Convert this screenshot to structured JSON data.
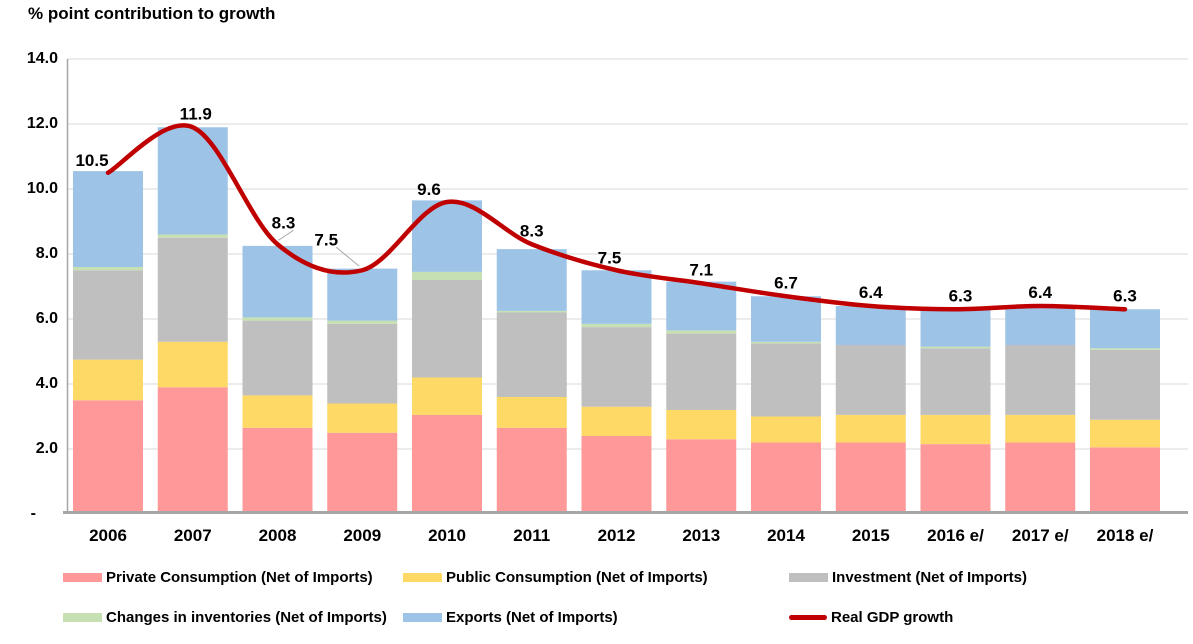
{
  "chart": {
    "title": "% point contribution to growth"
  },
  "chart_data": {
    "type": "bar",
    "subtype": "stacked-column-with-line",
    "title": "% point contribution to growth",
    "categories": [
      "2006",
      "2007",
      "2008",
      "2009",
      "2010",
      "2011",
      "2012",
      "2013",
      "2014",
      "2015",
      "2016 e/",
      "2017 e/",
      "2018 e/"
    ],
    "ylim": [
      0,
      14
    ],
    "ytick_interval": 2,
    "grid": true,
    "legend_position": "bottom",
    "yticks": [
      {
        "label": "14.0",
        "value": 14
      },
      {
        "label": "12.0",
        "value": 12
      },
      {
        "label": "10.0",
        "value": 10
      },
      {
        "label": "8.0",
        "value": 8
      },
      {
        "label": "6.0",
        "value": 6
      },
      {
        "label": "4.0",
        "value": 4
      },
      {
        "label": "2.0",
        "value": 2
      },
      {
        "label": "-",
        "value": 0
      }
    ],
    "series": [
      {
        "id": "private",
        "name": "Private Consumption (Net of Imports)",
        "color": "#FF9999",
        "values": [
          3.5,
          3.9,
          2.65,
          2.5,
          3.05,
          2.65,
          2.4,
          2.3,
          2.2,
          2.2,
          2.15,
          2.2,
          2.05
        ]
      },
      {
        "id": "public",
        "name": "Public Consumption (Net of Imports)",
        "color": "#FFD966",
        "values": [
          1.25,
          1.4,
          1.0,
          0.9,
          1.15,
          0.95,
          0.9,
          0.9,
          0.8,
          0.85,
          0.9,
          0.85,
          0.85
        ]
      },
      {
        "id": "investment",
        "name": "Investment (Net of Imports)",
        "color": "#BFBFBF",
        "values": [
          2.75,
          3.2,
          2.3,
          2.45,
          3.0,
          2.6,
          2.45,
          2.35,
          2.25,
          2.15,
          2.05,
          2.15,
          2.15
        ]
      },
      {
        "id": "inventories",
        "name": "Changes in inventories (Net of Imports)",
        "color": "#C6E0B4",
        "values": [
          0.1,
          0.1,
          0.1,
          0.1,
          0.25,
          0.05,
          0.1,
          0.1,
          0.05,
          0,
          0.05,
          0,
          0.05
        ]
      },
      {
        "id": "exports",
        "name": "Exports (Net of Imports)",
        "color": "#9DC3E6",
        "values": [
          2.95,
          3.3,
          2.2,
          1.6,
          2.2,
          1.9,
          1.65,
          1.5,
          1.4,
          1.2,
          1.15,
          1.15,
          1.2
        ]
      }
    ],
    "line_series": {
      "id": "gdp",
      "name": "Real GDP growth",
      "color": "#C00000",
      "values": [
        10.5,
        11.9,
        8.3,
        7.5,
        9.6,
        8.3,
        7.5,
        7.1,
        6.7,
        6.4,
        6.3,
        6.4,
        6.3
      ],
      "labels": [
        "10.5",
        "11.9",
        "8.3",
        "7.5",
        "9.6",
        "8.3",
        "7.5",
        "7.1",
        "6.7",
        "6.4",
        "6.3",
        "6.4",
        "6.3"
      ]
    }
  },
  "colors": {
    "grid": "#D9D9D9",
    "axis": "#A6A6A6",
    "leader_line": "#A6A6A6",
    "background": "#FFFFFF",
    "label_text": "#000000"
  }
}
